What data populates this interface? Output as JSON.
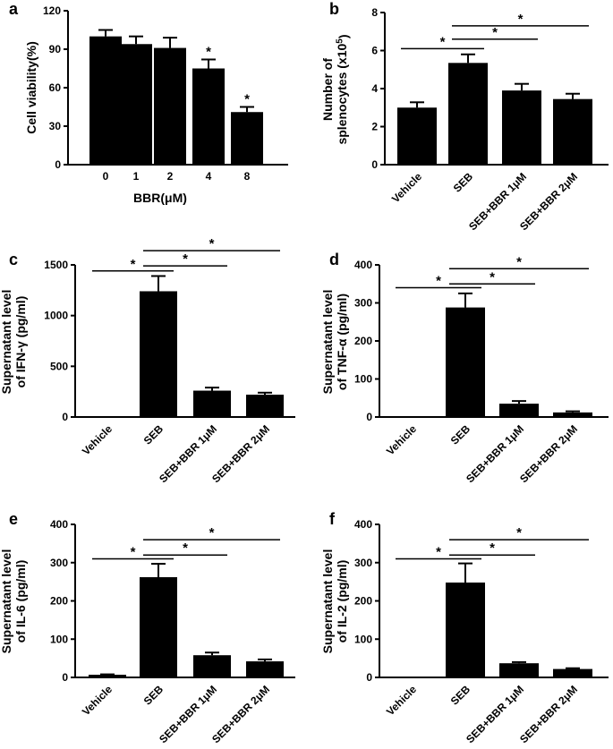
{
  "chart_data": [
    {
      "panel": "a",
      "type": "bar",
      "categories": [
        "0",
        "1",
        "2",
        "4",
        "8"
      ],
      "values": [
        100,
        94,
        91,
        75,
        41
      ],
      "errors": [
        5,
        6,
        8,
        7,
        4
      ],
      "xlabel": "BBR(μM)",
      "ylabel": "Cell viability(%)",
      "ylim": [
        0,
        120
      ],
      "yticks": [
        "0",
        "30",
        "60",
        "90",
        "120"
      ],
      "bar_stars": [
        "",
        "",
        "",
        "*",
        "*"
      ],
      "brackets": []
    },
    {
      "panel": "b",
      "type": "bar",
      "categories": [
        "Vehicle",
        "SEB",
        "SEB+BBR 1μM",
        "SEB+BBR 2μM"
      ],
      "values": [
        3.0,
        5.35,
        3.9,
        3.45
      ],
      "errors": [
        0.28,
        0.45,
        0.35,
        0.28
      ],
      "xlabel": "",
      "ylabel": [
        "Number of",
        "splenocytes (x10",
        "5",
        ")"
      ],
      "ylim": [
        0,
        8
      ],
      "yticks": [
        "0",
        "2",
        "4",
        "6",
        "8"
      ],
      "bar_stars": [],
      "brackets": [
        {
          "from": 0,
          "to": 1,
          "y": 6.1,
          "label": "*"
        },
        {
          "from": 1,
          "to": 2,
          "y": 6.6,
          "label": "*"
        },
        {
          "from": 1,
          "to": 3,
          "y": 7.3,
          "label": "*"
        }
      ]
    },
    {
      "panel": "c",
      "type": "bar",
      "categories": [
        "Vehicle",
        "SEB",
        "SEB+BBR 1μM",
        "SEB+BBR 2μM"
      ],
      "values": [
        0,
        1240,
        260,
        220
      ],
      "errors": [
        0,
        150,
        30,
        20
      ],
      "xlabel": "",
      "ylabel": [
        "Supernatant level",
        "of IFN-γ (pg/ml)"
      ],
      "ylim": [
        0,
        1500
      ],
      "yticks": [
        "0",
        "500",
        "1000",
        "1500"
      ],
      "bar_stars": [],
      "brackets": [
        {
          "from": 0,
          "to": 1,
          "y": 1440,
          "label": "*"
        },
        {
          "from": 1,
          "to": 2,
          "y": 1490,
          "label": "*"
        },
        {
          "from": 1,
          "to": 3,
          "y": 1640,
          "label": "*"
        }
      ]
    },
    {
      "panel": "d",
      "type": "bar",
      "categories": [
        "Vehicle",
        "SEB",
        "SEB+BBR 1μM",
        "SEB+BBR 2μM"
      ],
      "values": [
        0,
        288,
        35,
        12
      ],
      "errors": [
        0,
        37,
        7,
        3
      ],
      "xlabel": "",
      "ylabel": [
        "Supernatant level",
        "of TNF-α (pg/ml)"
      ],
      "ylim": [
        0,
        400
      ],
      "yticks": [
        "0",
        "100",
        "200",
        "300",
        "400"
      ],
      "bar_stars": [],
      "brackets": [
        {
          "from": 0,
          "to": 1,
          "y": 340,
          "label": "*"
        },
        {
          "from": 1,
          "to": 2,
          "y": 350,
          "label": "*"
        },
        {
          "from": 1,
          "to": 3,
          "y": 390,
          "label": "*"
        }
      ]
    },
    {
      "panel": "e",
      "type": "bar",
      "categories": [
        "Vehicle",
        "SEB",
        "SEB+BBR 1μM",
        "SEB+BBR 2μM"
      ],
      "values": [
        7,
        262,
        58,
        42
      ],
      "errors": [
        1,
        35,
        7,
        5
      ],
      "xlabel": "",
      "ylabel": [
        "Supernatant level",
        "of IL-6 (pg/ml)"
      ],
      "ylim": [
        0,
        400
      ],
      "yticks": [
        "0",
        "100",
        "200",
        "300",
        "400"
      ],
      "bar_stars": [],
      "brackets": [
        {
          "from": 0,
          "to": 1,
          "y": 310,
          "label": "*"
        },
        {
          "from": 1,
          "to": 2,
          "y": 320,
          "label": "*"
        },
        {
          "from": 1,
          "to": 3,
          "y": 360,
          "label": "*"
        }
      ]
    },
    {
      "panel": "f",
      "type": "bar",
      "categories": [
        "Vehicle",
        "SEB",
        "SEB+BBR 1μM",
        "SEB+BBR 2μM"
      ],
      "values": [
        0,
        248,
        37,
        22
      ],
      "errors": [
        0,
        50,
        3,
        2
      ],
      "xlabel": "",
      "ylabel": [
        "Supernatant level",
        "of IL-2 (pg/ml)"
      ],
      "ylim": [
        0,
        400
      ],
      "yticks": [
        "0",
        "100",
        "200",
        "300",
        "400"
      ],
      "bar_stars": [],
      "brackets": [
        {
          "from": 0,
          "to": 1,
          "y": 310,
          "label": "*"
        },
        {
          "from": 1,
          "to": 2,
          "y": 320,
          "label": "*"
        },
        {
          "from": 1,
          "to": 3,
          "y": 360,
          "label": "*"
        }
      ]
    }
  ]
}
